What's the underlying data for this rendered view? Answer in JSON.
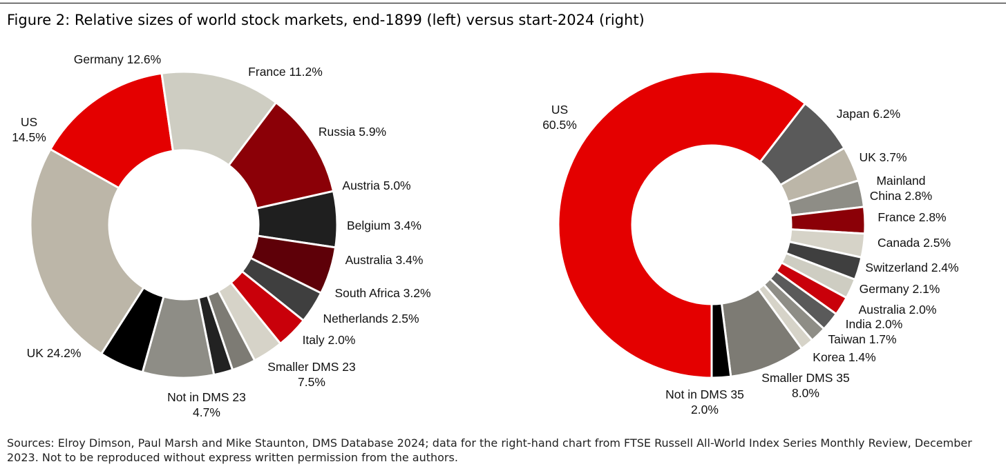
{
  "figure": {
    "title": "Figure 2: Relative sizes of world stock markets, end-1899 (left) versus start-2024 (right)",
    "source": "Sources: Elroy Dimson, Paul Marsh and Mike Staunton, DMS Database 2024; data for the right-hand chart from FTSE Russell All-World Index Series Monthly Review, December 2023. Not to be reproduced without express written permission from the authors."
  },
  "chart_data": [
    {
      "type": "donut",
      "title": "",
      "slices": [
        {
          "name": "US",
          "value": 14.5,
          "label": [
            "US",
            "14.5%"
          ],
          "color": "#e40000"
        },
        {
          "name": "Germany",
          "value": 12.6,
          "label": [
            "Germany 12.6%"
          ],
          "color": "#cecdc2"
        },
        {
          "name": "France",
          "value": 11.2,
          "label": [
            "France 11.2%"
          ],
          "color": "#8b0007"
        },
        {
          "name": "Russia",
          "value": 5.9,
          "label": [
            "Russia 5.9%"
          ],
          "color": "#1f1f1f"
        },
        {
          "name": "Austria",
          "value": 5.0,
          "label": [
            "Austria 5.0%"
          ],
          "color": "#5e0008"
        },
        {
          "name": "Belgium",
          "value": 3.4,
          "label": [
            "Belgium 3.4%"
          ],
          "color": "#3f3f3f"
        },
        {
          "name": "Australia",
          "value": 3.4,
          "label": [
            "Australia 3.4%"
          ],
          "color": "#c9000a"
        },
        {
          "name": "South Africa",
          "value": 3.2,
          "label": [
            "South Africa 3.2%"
          ],
          "color": "#d6d3c8"
        },
        {
          "name": "Netherlands",
          "value": 2.5,
          "label": [
            "Netherlands 2.5%"
          ],
          "color": "#7d7b74"
        },
        {
          "name": "Italy",
          "value": 2.0,
          "label": [
            "Italy 2.0%"
          ],
          "color": "#222222"
        },
        {
          "name": "Smaller DMS 23",
          "value": 7.5,
          "label": [
            "Smaller DMS 23",
            "7.5%"
          ],
          "color": "#8e8d86"
        },
        {
          "name": "Not in DMS 23",
          "value": 4.7,
          "label": [
            "Not in DMS 23",
            "4.7%"
          ],
          "color": "#000000"
        },
        {
          "name": "UK",
          "value": 24.2,
          "label": [
            "UK 24.2%"
          ],
          "color": "#bcb6a8"
        }
      ]
    },
    {
      "type": "donut",
      "title": "",
      "slices": [
        {
          "name": "US",
          "value": 60.5,
          "label": [
            "US",
            "60.5%"
          ],
          "color": "#e40000"
        },
        {
          "name": "Japan",
          "value": 6.2,
          "label": [
            "Japan 6.2%"
          ],
          "color": "#5a5a5a"
        },
        {
          "name": "UK",
          "value": 3.7,
          "label": [
            "UK 3.7%"
          ],
          "color": "#bcb6a8"
        },
        {
          "name": "Mainland China",
          "value": 2.8,
          "label": [
            "Mainland",
            "China 2.8%"
          ],
          "color": "#8e8d86"
        },
        {
          "name": "France",
          "value": 2.8,
          "label": [
            "France 2.8%"
          ],
          "color": "#8b0007"
        },
        {
          "name": "Canada",
          "value": 2.5,
          "label": [
            "Canada 2.5%"
          ],
          "color": "#d6d3c8"
        },
        {
          "name": "Switzerland",
          "value": 2.4,
          "label": [
            "Switzerland 2.4%"
          ],
          "color": "#3f3f3f"
        },
        {
          "name": "Germany",
          "value": 2.1,
          "label": [
            "Germany 2.1%"
          ],
          "color": "#cecdc2"
        },
        {
          "name": "Australia",
          "value": 2.0,
          "label": [
            "Australia 2.0%"
          ],
          "color": "#c9000a"
        },
        {
          "name": "India",
          "value": 2.0,
          "label": [
            "India 2.0%"
          ],
          "color": "#5a5a5a"
        },
        {
          "name": "Taiwan",
          "value": 1.7,
          "label": [
            "Taiwan 1.7%"
          ],
          "color": "#8e8d86"
        },
        {
          "name": "Korea",
          "value": 1.4,
          "label": [
            "Korea 1.4%"
          ],
          "color": "#d6d3c8"
        },
        {
          "name": "Smaller DMS 35",
          "value": 8.0,
          "label": [
            "Smaller DMS 35",
            "8.0%"
          ],
          "color": "#7d7b74"
        },
        {
          "name": "Not in DMS 35",
          "value": 2.0,
          "label": [
            "Not in DMS 35",
            "2.0%"
          ],
          "color": "#000000"
        }
      ]
    }
  ]
}
